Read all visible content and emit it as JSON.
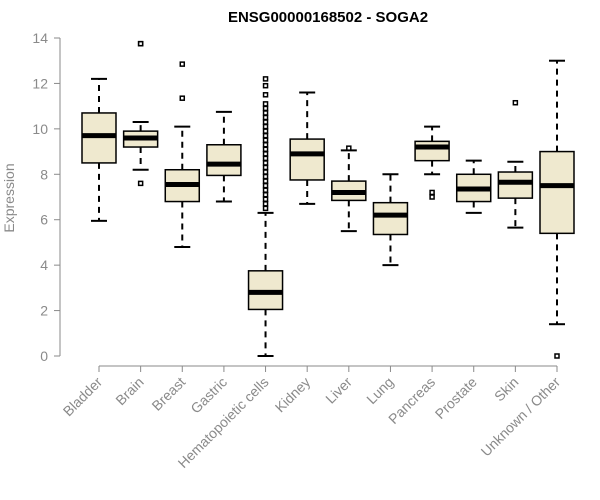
{
  "chart_data": {
    "type": "box",
    "title": "ENSG00000168502 - SOGA2",
    "ylabel": "Expression",
    "xlabel": "",
    "ylim": [
      0,
      14
    ],
    "yticks": [
      0,
      2,
      4,
      6,
      8,
      10,
      12,
      14
    ],
    "categories": [
      "Bladder",
      "Brain",
      "Breast",
      "Gastric",
      "Hematopoietic cells",
      "Kidney",
      "Liver",
      "Lung",
      "Pancreas",
      "Prostate",
      "Skin",
      "Unknown / Other"
    ],
    "boxes": [
      {
        "category": "Bladder",
        "min": 5.95,
        "q1": 8.5,
        "median": 9.7,
        "q3": 10.7,
        "max": 12.2,
        "outliers": []
      },
      {
        "category": "Brain",
        "min": 8.2,
        "q1": 9.2,
        "median": 9.6,
        "q3": 9.9,
        "max": 10.3,
        "outliers": [
          13.75,
          13.75,
          7.6
        ]
      },
      {
        "category": "Breast",
        "min": 4.8,
        "q1": 6.8,
        "median": 7.55,
        "q3": 8.2,
        "max": 10.1,
        "outliers": [
          12.85,
          11.35
        ]
      },
      {
        "category": "Gastric",
        "min": 6.8,
        "q1": 7.95,
        "median": 8.45,
        "q3": 9.3,
        "max": 10.75,
        "outliers": []
      },
      {
        "category": "Hematopoietic cells",
        "min": 0.0,
        "q1": 2.05,
        "median": 2.8,
        "q3": 3.75,
        "max": 6.3,
        "outliers": [
          12.2,
          11.9,
          11.5,
          11.1,
          10.9,
          10.7,
          10.5,
          10.3,
          10.1,
          9.9,
          9.7,
          9.5,
          9.3,
          9.1,
          8.9,
          8.7,
          8.5,
          8.3,
          8.1,
          7.9,
          7.7,
          7.5,
          7.3,
          7.1,
          6.9,
          6.7,
          6.5
        ]
      },
      {
        "category": "Kidney",
        "min": 6.7,
        "q1": 7.75,
        "median": 8.9,
        "q3": 9.55,
        "max": 11.6,
        "outliers": []
      },
      {
        "category": "Liver",
        "min": 5.5,
        "q1": 6.85,
        "median": 7.2,
        "q3": 7.7,
        "max": 9.05,
        "outliers": [
          9.15
        ]
      },
      {
        "category": "Lung",
        "min": 4.0,
        "q1": 5.35,
        "median": 6.2,
        "q3": 6.75,
        "max": 8.0,
        "outliers": []
      },
      {
        "category": "Pancreas",
        "min": 8.0,
        "q1": 8.6,
        "median": 9.2,
        "q3": 9.45,
        "max": 10.1,
        "outliers": [
          7.2,
          7.0
        ]
      },
      {
        "category": "Prostate",
        "min": 6.3,
        "q1": 6.8,
        "median": 7.35,
        "q3": 8.0,
        "max": 8.6,
        "outliers": []
      },
      {
        "category": "Skin",
        "min": 5.65,
        "q1": 6.95,
        "median": 7.65,
        "q3": 8.1,
        "max": 8.55,
        "outliers": [
          11.15
        ]
      },
      {
        "category": "Unknown / Other",
        "min": 1.4,
        "q1": 5.4,
        "median": 7.5,
        "q3": 9.0,
        "max": 13.0,
        "outliers": [
          0.0
        ]
      }
    ]
  }
}
